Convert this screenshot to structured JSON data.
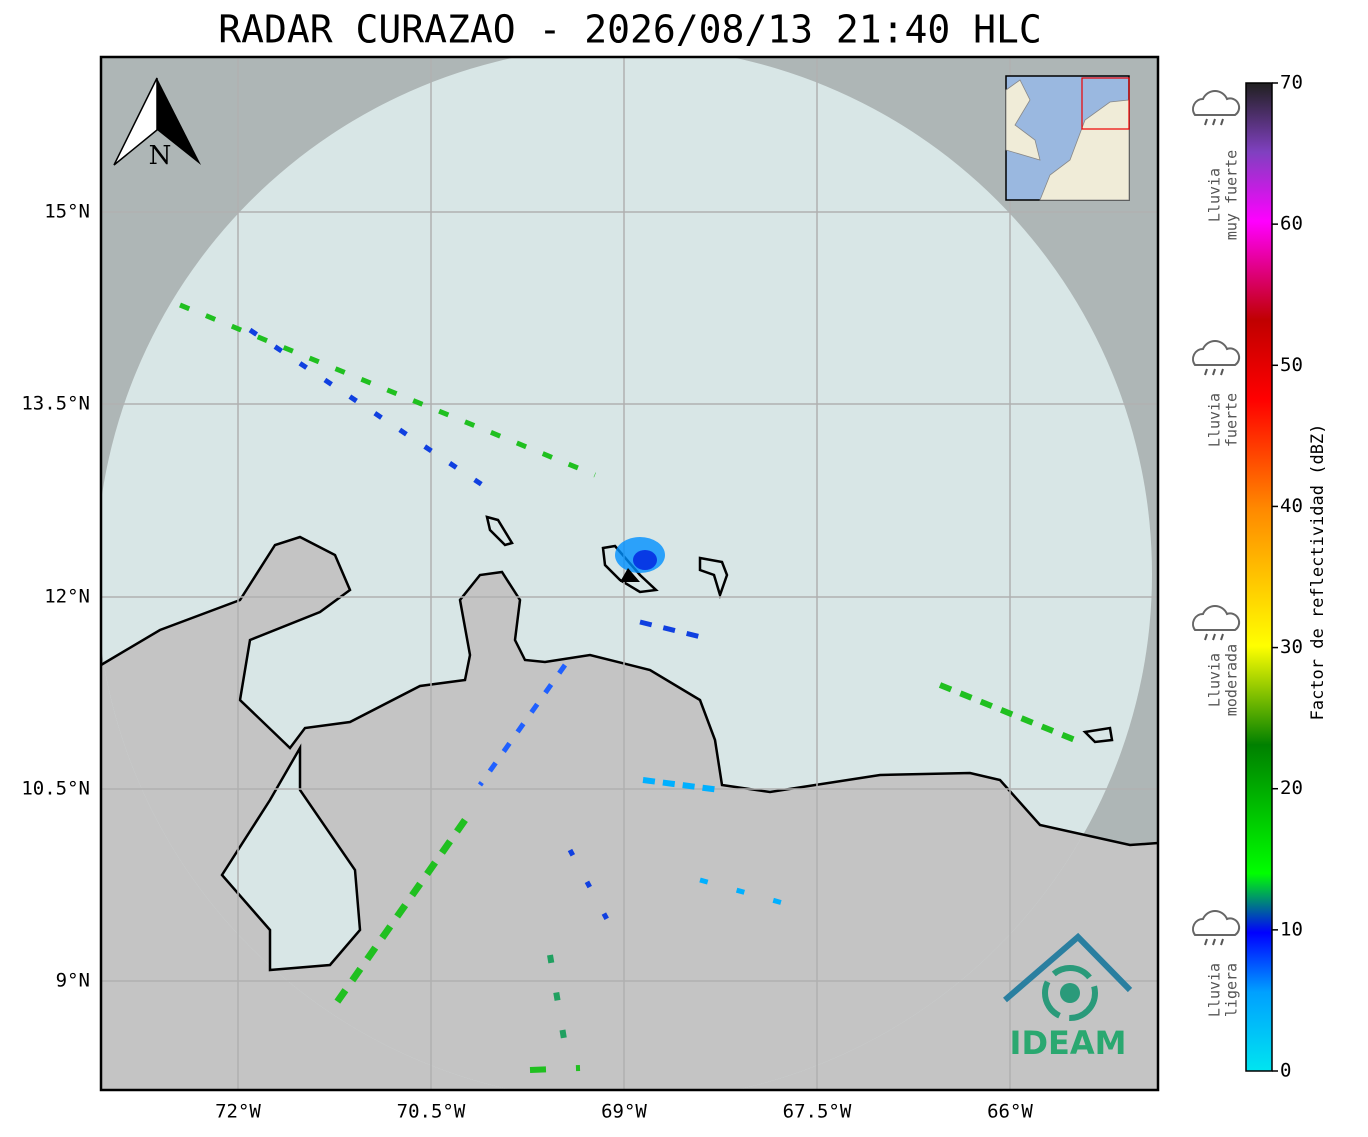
{
  "title": "RADAR CURAZAO - 2026/08/13 21:40 HLC",
  "north": "N",
  "x_labels": [
    "72°W",
    "70.5°W",
    "69°W",
    "67.5°W",
    "66°W"
  ],
  "y_labels": [
    "15°N",
    "13.5°N",
    "12°N",
    "10.5°N",
    "9°N"
  ],
  "colorbar": {
    "label": "Factor de reflectividad (dBZ)",
    "lim": [
      0,
      70
    ],
    "ticks": [
      0,
      10,
      20,
      30,
      40,
      50,
      60,
      70
    ]
  },
  "rain_labels": [
    [
      "Lluvia",
      "muy fuerte"
    ],
    [
      "Lluvia",
      "fuerte"
    ],
    [
      "Lluvia",
      "moderada"
    ],
    [
      "Lluvia",
      "ligera"
    ]
  ],
  "logo": "IDEAM"
}
